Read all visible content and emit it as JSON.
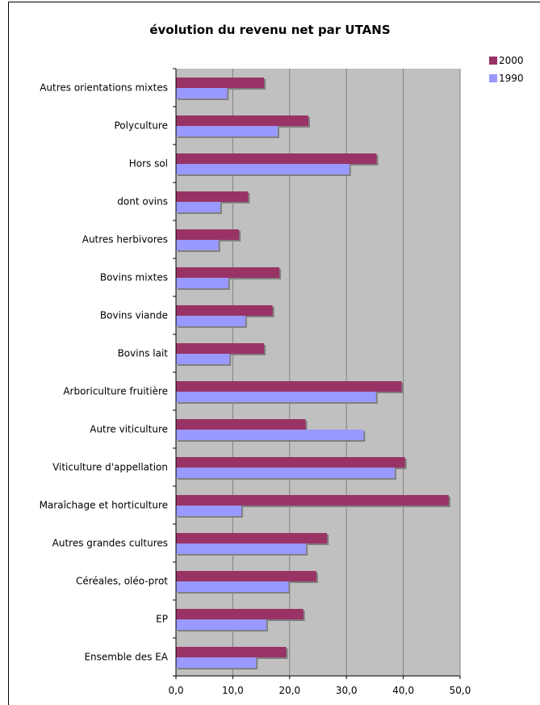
{
  "chart_data": {
    "type": "bar",
    "orientation": "horizontal",
    "title": "évolution du revenu net par UTANS",
    "xlabel": "",
    "ylabel": "",
    "xlim": [
      0,
      50
    ],
    "ticks": [
      "0,0",
      "10,0",
      "20,0",
      "30,0",
      "40,0",
      "50,0"
    ],
    "grid": true,
    "legend_position": "top-right",
    "categories": [
      "Autres orientations mixtes",
      "Polyculture",
      "Hors sol",
      "dont  ovins",
      "Autres herbivores",
      "Bovins mixtes",
      "Bovins viande",
      "Bovins lait",
      "Arboriculture fruitière",
      "Autre viticulture",
      "Viticulture d'appellation",
      "Maraîchage et horticulture",
      "Autres grandes cultures",
      "Céréales, oléo-prot",
      "EP",
      "Ensemble des EA"
    ],
    "series": [
      {
        "name": "2000",
        "color": "#993366",
        "values": [
          15.5,
          23.3,
          35.3,
          12.7,
          11.1,
          18.2,
          17.0,
          15.5,
          39.7,
          22.8,
          40.3,
          48.0,
          26.6,
          24.7,
          22.4,
          19.4
        ]
      },
      {
        "name": "1990",
        "color": "#9999ff",
        "values": [
          9.0,
          17.9,
          30.5,
          7.8,
          7.5,
          9.2,
          12.2,
          9.4,
          35.2,
          33.0,
          38.5,
          11.5,
          22.9,
          19.8,
          15.9,
          14.1
        ]
      }
    ]
  }
}
